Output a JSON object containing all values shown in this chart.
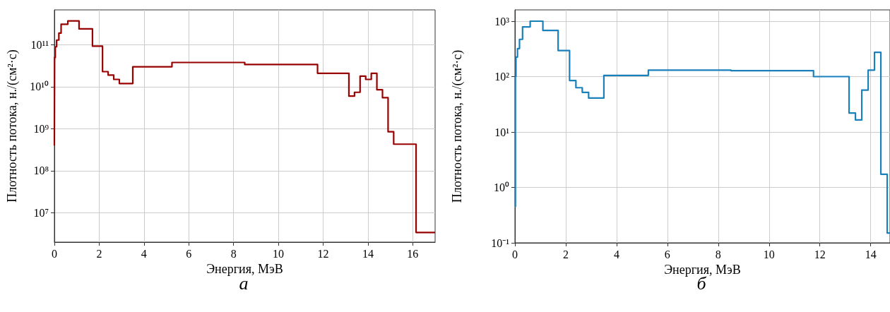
{
  "chart_data": [
    {
      "type": "step",
      "xlabel": "Энергия, МэВ",
      "ylabel": "Плотность потока, н./(см²·с)",
      "annotations": [
        "а"
      ],
      "log": "y",
      "grid": true,
      "xlim": [
        0,
        17
      ],
      "xticks": [
        0,
        2,
        4,
        6,
        8,
        10,
        12,
        14,
        16
      ],
      "ylim": [
        2000000,
        680000000000
      ],
      "yticks": [
        {
          "value": 10000000,
          "label": "10⁷"
        },
        {
          "value": 100000000,
          "label": "10⁸"
        },
        {
          "value": 1000000000,
          "label": "10⁹"
        },
        {
          "value": 10000000000,
          "label": "10¹⁰"
        },
        {
          "value": 100000000000,
          "label": "10¹¹"
        }
      ],
      "series": [
        {
          "color": "#990000",
          "x": [
            0,
            0.01,
            0.04,
            0.1,
            0.2,
            0.3,
            0.6,
            1.1,
            1.7,
            2.15,
            2.4,
            2.65,
            2.9,
            3.5,
            5.25,
            8.5,
            11.75,
            13.15,
            13.4,
            13.65,
            13.9,
            14.15,
            14.4,
            14.65,
            14.9,
            15.15,
            16.15,
            17
          ],
          "values": [
            400000000,
            50000000000,
            90000000000,
            130000000000,
            190000000000,
            310000000000,
            370000000000,
            240000000000,
            93000000000,
            23000000000,
            19000000000,
            15000000000,
            12000000000,
            30000000000,
            38000000000,
            34000000000,
            21000000000,
            6000000000,
            7400000000,
            18000000000,
            15000000000,
            21000000000,
            8500000000,
            5500000000,
            850000000,
            430000000,
            3400000,
            3400000
          ]
        }
      ]
    },
    {
      "type": "step",
      "xlabel": "Энергия, МэВ",
      "ylabel": "Плотность потока, н./(см²·с)",
      "annotations": [
        "б"
      ],
      "log": "y",
      "grid": true,
      "xlim": [
        0,
        14.76
      ],
      "xticks": [
        0,
        2,
        4,
        6,
        8,
        10,
        12,
        14
      ],
      "ylim": [
        0.1,
        1600
      ],
      "yticks": [
        {
          "value": 0.1,
          "label": "10⁻¹"
        },
        {
          "value": 1,
          "label": "10⁰"
        },
        {
          "value": 10,
          "label": "10¹"
        },
        {
          "value": 100,
          "label": "10²"
        },
        {
          "value": 1000,
          "label": "10³"
        }
      ],
      "series": [
        {
          "color": "#1a80bb",
          "x": [
            0,
            0.02,
            0.04,
            0.1,
            0.18,
            0.3,
            0.6,
            1.1,
            1.7,
            2.15,
            2.4,
            2.65,
            2.9,
            3.5,
            5.25,
            8.5,
            11.75,
            13.15,
            13.4,
            13.65,
            13.9,
            14.15,
            14.4,
            14.65,
            14.76
          ],
          "values": [
            0.45,
            100,
            225,
            320,
            470,
            790,
            1000,
            680,
            295,
            85,
            63,
            52,
            41,
            105,
            131,
            128,
            100,
            22,
            16.5,
            57,
            131,
            275,
            1.73,
            0.15,
            0.15
          ]
        }
      ]
    }
  ]
}
